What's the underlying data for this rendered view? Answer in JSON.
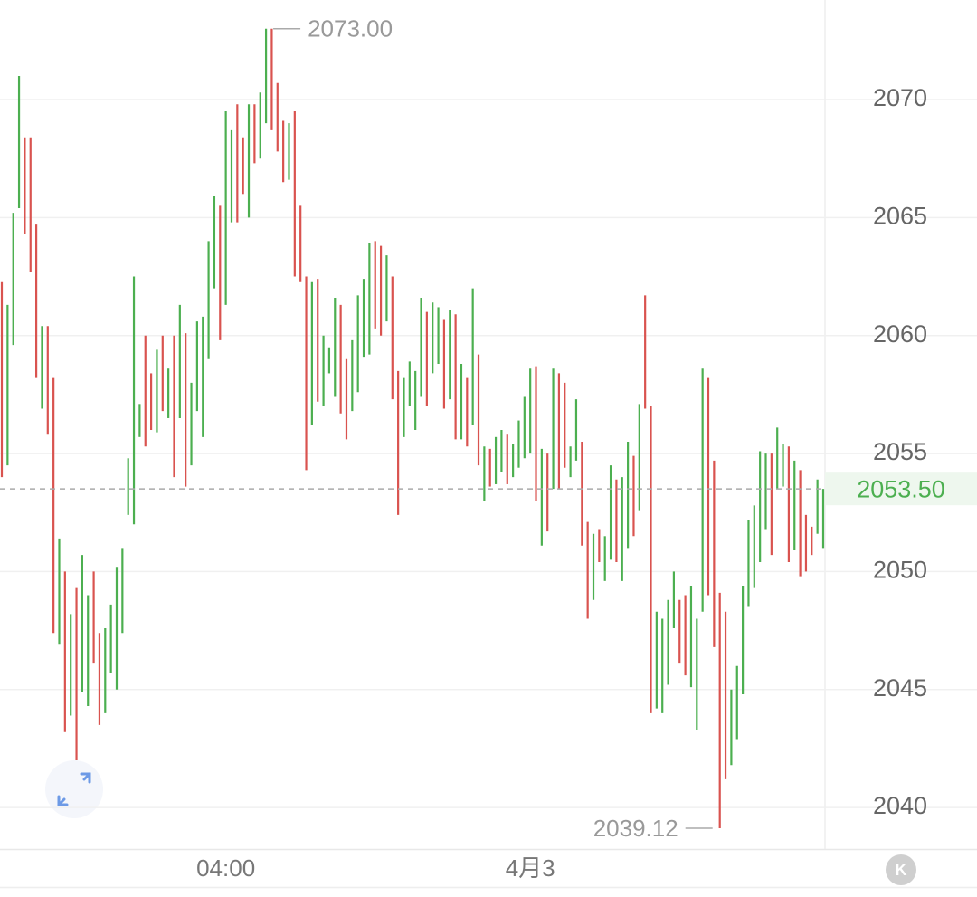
{
  "chart_data": {
    "type": "candlestick",
    "colors": {
      "up": "#4caf50",
      "down": "#d9534f"
    },
    "grid": true,
    "ylim": [
      2038.24,
      2074.22
    ],
    "yticks": [
      2040,
      2045,
      2050,
      2055,
      2060,
      2065,
      2070
    ],
    "xticks": [
      {
        "value": 39,
        "label": "04:00"
      },
      {
        "value": 92,
        "label": "4月3"
      }
    ],
    "open": [
      2062.3,
      2054.5,
      2059.6,
      2065.4,
      2068.4,
      2068.4,
      2064.7,
      2056.9,
      2060.4,
      2058.2,
      2046.9,
      2050.0,
      2043.9,
      2049.3,
      2044.9,
      2044.3,
      2050.0,
      2047.4,
      2044.0,
      2045.7,
      2045.0,
      2047.4,
      2052.4,
      2052.0,
      2055.7,
      2060.0,
      2058.4,
      2055.9,
      2060.0,
      2056.5,
      2060.0,
      2056.5,
      2060.1,
      2054.5,
      2056.8,
      2055.7,
      2059.0,
      2062.0,
      2065.5,
      2061.3,
      2064.8,
      2069.8,
      2068.4,
      2065.0,
      2069.8,
      2067.5,
      2069.0,
      2073.0,
      2070.7,
      2069.1,
      2066.6,
      2069.5,
      2065.5,
      2062.5,
      2056.2,
      2062.4,
      2057.0,
      2058.4,
      2057.4,
      2061.3,
      2059.0,
      2056.8,
      2057.6,
      2059.1,
      2059.2,
      2064.0,
      2063.8,
      2060.6,
      2062.5,
      2058.5,
      2055.7,
      2057.0,
      2056.0,
      2057.4,
      2061.0,
      2058.4,
      2058.8,
      2060.7,
      2057.3,
      2060.9,
      2055.6,
      2058.2,
      2056.2,
      2059.2,
      2053.0,
      2055.2,
      2053.7,
      2054.2,
      2055.8,
      2054.0,
      2054.4,
      2054.8,
      2055.0,
      2058.7,
      2051.1,
      2055.0,
      2053.5,
      2058.4,
      2058.0,
      2054.0,
      2054.7,
      2055.5,
      2052.1,
      2048.8,
      2051.8,
      2049.6,
      2050.5,
      2053.9,
      2049.6,
      2051.0,
      2054.9,
      2052.6,
      2061.7,
      2057.0,
      2044.2,
      2044.0,
      2045.2,
      2047.6,
      2048.8,
      2049.0,
      2045.1,
      2043.3,
      2048.3,
      2058.2,
      2054.7,
      2049.1,
      2048.3,
      2041.8,
      2042.9,
      2044.8,
      2048.5,
      2049.3,
      2050.4,
      2051.8,
      2055.0,
      2053.5,
      2053.6,
      2055.3,
      2050.9,
      2054.3,
      2052.4,
      2051.9,
      2051.6,
      2051.0
    ],
    "close": [
      2054.0,
      2061.3,
      2065.2,
      2071.0,
      2064.3,
      2062.7,
      2058.2,
      2060.4,
      2055.8,
      2047.4,
      2051.4,
      2043.2,
      2048.2,
      2042.0,
      2050.7,
      2049.0,
      2046.1,
      2043.5,
      2047.6,
      2048.6,
      2050.2,
      2051.0,
      2054.8,
      2062.5,
      2057.1,
      2055.3,
      2056.0,
      2059.4,
      2056.8,
      2058.6,
      2054.0,
      2061.3,
      2053.6,
      2058.0,
      2060.6,
      2060.8,
      2064.0,
      2065.9,
      2059.8,
      2069.5,
      2068.7,
      2064.8,
      2066.0,
      2069.8,
      2067.3,
      2070.3,
      2073.0,
      2068.7,
      2067.8,
      2066.5,
      2069.0,
      2062.5,
      2062.3,
      2054.3,
      2062.3,
      2057.2,
      2060.0,
      2059.5,
      2061.6,
      2056.7,
      2055.6,
      2059.8,
      2061.7,
      2062.4,
      2063.9,
      2060.3,
      2060.0,
      2063.4,
      2057.3,
      2052.4,
      2058.2,
      2058.9,
      2058.5,
      2061.6,
      2057.0,
      2061.4,
      2061.2,
      2056.9,
      2061.1,
      2055.6,
      2058.8,
      2055.3,
      2062.0,
      2054.5,
      2055.3,
      2053.6,
      2055.7,
      2056.0,
      2053.7,
      2055.4,
      2056.4,
      2057.4,
      2058.6,
      2053.0,
      2055.2,
      2051.7,
      2058.6,
      2053.5,
      2054.4,
      2055.3,
      2057.3,
      2051.1,
      2048.0,
      2051.6,
      2050.4,
      2051.5,
      2054.5,
      2050.4,
      2054.0,
      2055.5,
      2051.5,
      2057.1,
      2056.9,
      2044.0,
      2048.3,
      2048.0,
      2048.8,
      2050.0,
      2046.1,
      2045.6,
      2049.4,
      2048.0,
      2058.6,
      2049.0,
      2046.8,
      2039.12,
      2041.2,
      2045.0,
      2046.0,
      2049.4,
      2052.2,
      2052.8,
      2055.1,
      2055.0,
      2050.7,
      2056.1,
      2055.4,
      2050.4,
      2054.7,
      2049.8,
      2050.0,
      2050.7,
      2053.9,
      2053.5
    ],
    "annotations": [
      {
        "value": 2073.0,
        "label": "2073.00"
      },
      {
        "value": 2039.12,
        "label": "2039.12"
      }
    ],
    "last_price": {
      "value": 2053.5,
      "label": "2053.50"
    },
    "badge": "K"
  }
}
